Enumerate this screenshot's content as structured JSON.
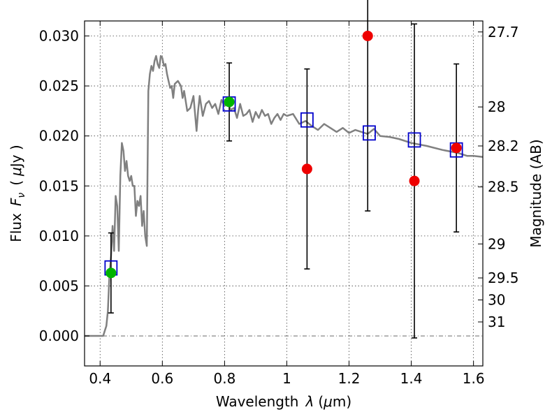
{
  "chart_data": {
    "type": "scatter",
    "xlabel": "Wavelength",
    "xlabel_symbol": "λ",
    "xlabel_unit_prefix": "(",
    "xlabel_unit_mu": "μ",
    "xlabel_unit_rest": "m)",
    "ylabel": "Flux",
    "ylabel_symbol": "F",
    "ylabel_subscript": "ν",
    "ylabel_unit_prefix": "(",
    "ylabel_unit_mu": "μ",
    "ylabel_unit_rest": "Jy )",
    "y2label": "Magnitude (AB)",
    "xlim": [
      0.35,
      1.63
    ],
    "ylim": [
      -0.003,
      0.0315
    ],
    "grid": true,
    "x_ticks": [
      {
        "value": 0.4,
        "label": "0.4"
      },
      {
        "value": 0.6,
        "label": "0.6"
      },
      {
        "value": 0.8,
        "label": "0.8"
      },
      {
        "value": 1.0,
        "label": "1"
      },
      {
        "value": 1.2,
        "label": "1.2"
      },
      {
        "value": 1.4,
        "label": "1.4"
      },
      {
        "value": 1.6,
        "label": "1.6"
      }
    ],
    "y_ticks": [
      {
        "value": 0.0,
        "label": "0.000"
      },
      {
        "value": 0.005,
        "label": "0.005"
      },
      {
        "value": 0.01,
        "label": "0.010"
      },
      {
        "value": 0.015,
        "label": "0.015"
      },
      {
        "value": 0.02,
        "label": "0.020"
      },
      {
        "value": 0.025,
        "label": "0.025"
      },
      {
        "value": 0.03,
        "label": "0.030"
      }
    ],
    "y2_ticks": [
      {
        "flux": 0.0304,
        "label": "27.7"
      },
      {
        "flux": 0.0229,
        "label": "28"
      },
      {
        "flux": 0.019,
        "label": "28.2"
      },
      {
        "flux": 0.0149,
        "label": "28.5"
      },
      {
        "flux": 0.0092,
        "label": "29"
      },
      {
        "flux": 0.0058,
        "label": "29.5"
      },
      {
        "flux": 0.0036,
        "label": "30"
      },
      {
        "flux": 0.0014,
        "label": "31"
      }
    ],
    "colors": {
      "sed": "#808080",
      "model_box": "#0000cc",
      "green": "#00b400",
      "red": "#ee0000",
      "errorbar": "#000000"
    },
    "series": [
      {
        "kind": "sed_line",
        "x": [
          0.35,
          0.4,
          0.41,
          0.415,
          0.42,
          0.425,
          0.43,
          0.435,
          0.44,
          0.445,
          0.45,
          0.455,
          0.46,
          0.465,
          0.47,
          0.475,
          0.48,
          0.485,
          0.49,
          0.495,
          0.5,
          0.505,
          0.51,
          0.515,
          0.52,
          0.525,
          0.53,
          0.535,
          0.54,
          0.545,
          0.55,
          0.555,
          0.56,
          0.565,
          0.57,
          0.575,
          0.58,
          0.585,
          0.59,
          0.595,
          0.6,
          0.605,
          0.61,
          0.615,
          0.62,
          0.625,
          0.63,
          0.635,
          0.64,
          0.65,
          0.66,
          0.665,
          0.67,
          0.68,
          0.69,
          0.7,
          0.71,
          0.715,
          0.72,
          0.73,
          0.74,
          0.75,
          0.76,
          0.77,
          0.78,
          0.79,
          0.8,
          0.81,
          0.82,
          0.83,
          0.84,
          0.85,
          0.86,
          0.87,
          0.88,
          0.89,
          0.9,
          0.91,
          0.92,
          0.93,
          0.94,
          0.95,
          0.96,
          0.97,
          0.98,
          0.99,
          1.0,
          1.02,
          1.04,
          1.06,
          1.08,
          1.1,
          1.12,
          1.14,
          1.16,
          1.18,
          1.2,
          1.22,
          1.24,
          1.26,
          1.28,
          1.3,
          1.33,
          1.36,
          1.4,
          1.45,
          1.5,
          1.55,
          1.58,
          1.6,
          1.63
        ],
        "y": [
          0.0,
          0.0,
          0.0,
          0.0005,
          0.001,
          0.0025,
          0.006,
          0.008,
          0.011,
          0.0085,
          0.014,
          0.013,
          0.0085,
          0.016,
          0.0193,
          0.0185,
          0.0165,
          0.0175,
          0.016,
          0.0155,
          0.016,
          0.015,
          0.015,
          0.012,
          0.0135,
          0.013,
          0.014,
          0.011,
          0.0125,
          0.01,
          0.009,
          0.0245,
          0.0262,
          0.027,
          0.0265,
          0.0275,
          0.028,
          0.0272,
          0.0268,
          0.028,
          0.0278,
          0.027,
          0.0272,
          0.0262,
          0.0255,
          0.0248,
          0.025,
          0.0238,
          0.0252,
          0.0255,
          0.025,
          0.0238,
          0.0245,
          0.0225,
          0.0228,
          0.024,
          0.0205,
          0.0225,
          0.024,
          0.022,
          0.0232,
          0.0235,
          0.0228,
          0.0232,
          0.0222,
          0.0236,
          0.023,
          0.0234,
          0.0226,
          0.0228,
          0.0218,
          0.0232,
          0.022,
          0.0222,
          0.0226,
          0.0214,
          0.0224,
          0.0218,
          0.0226,
          0.022,
          0.0222,
          0.0212,
          0.0218,
          0.0222,
          0.0216,
          0.0222,
          0.022,
          0.0222,
          0.0212,
          0.0215,
          0.021,
          0.0206,
          0.0212,
          0.0208,
          0.0204,
          0.0208,
          0.0203,
          0.0206,
          0.0204,
          0.0202,
          0.0207,
          0.02,
          0.0199,
          0.0197,
          0.0193,
          0.019,
          0.0186,
          0.0183,
          0.018,
          0.018,
          0.0179
        ]
      },
      {
        "kind": "model_boxes",
        "x": [
          0.435,
          0.815,
          1.065,
          1.265,
          1.41,
          1.545
        ],
        "y": [
          0.0068,
          0.0232,
          0.0216,
          0.0203,
          0.0196,
          0.0186
        ]
      },
      {
        "kind": "observed_green",
        "x": [
          0.435,
          0.815
        ],
        "y": [
          0.0063,
          0.0234
        ],
        "err": [
          0.004,
          0.0039
        ]
      },
      {
        "kind": "observed_red",
        "x": [
          1.065,
          1.26,
          1.41,
          1.545
        ],
        "y": [
          0.0167,
          0.03,
          0.0155,
          0.0188
        ],
        "err": [
          0.01,
          0.0175,
          0.0157,
          0.0084
        ]
      }
    ]
  }
}
